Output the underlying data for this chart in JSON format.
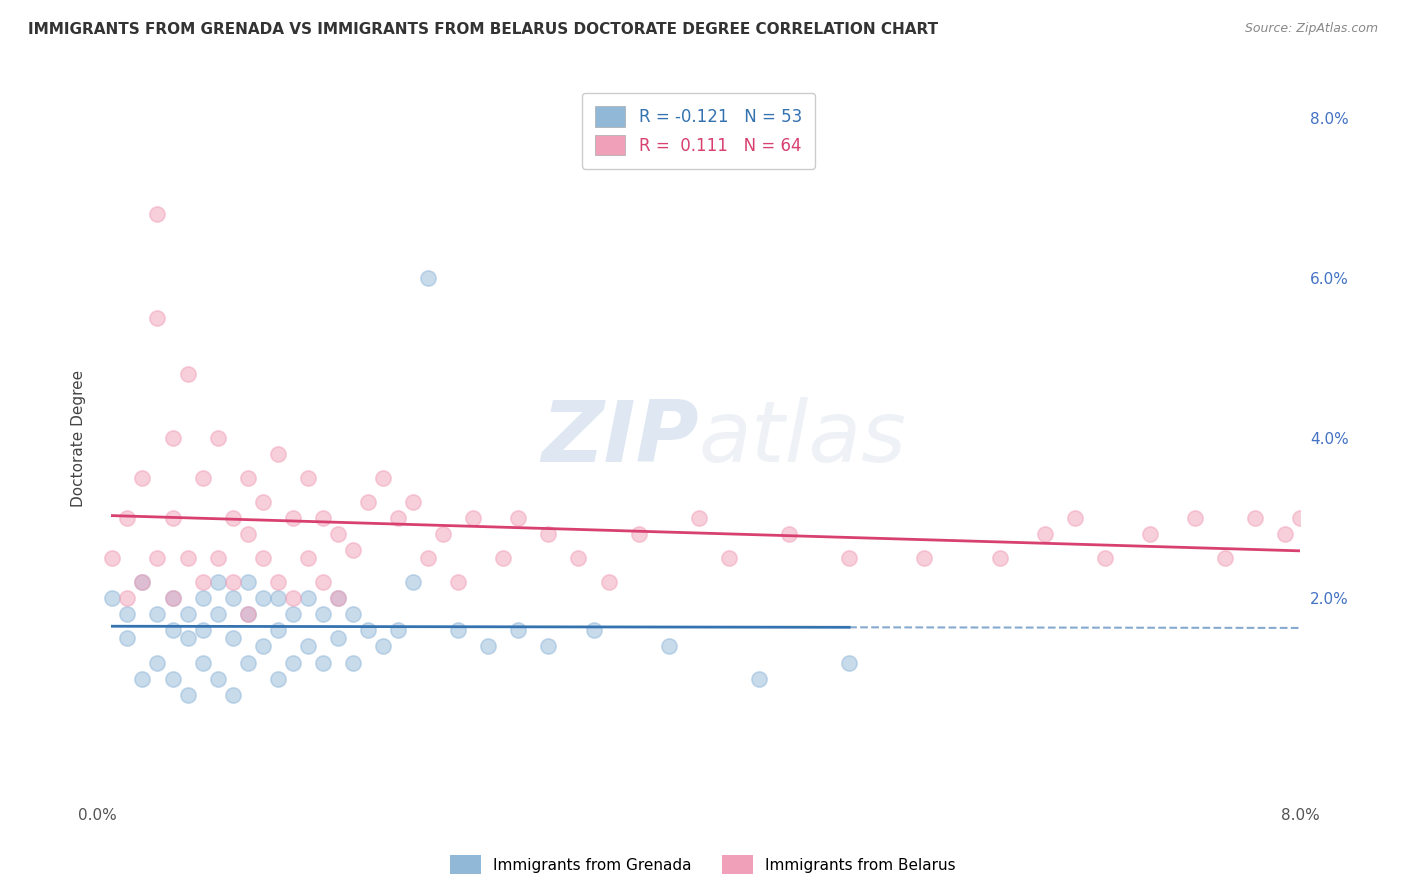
{
  "title": "IMMIGRANTS FROM GRENADA VS IMMIGRANTS FROM BELARUS DOCTORATE DEGREE CORRELATION CHART",
  "source_text": "Source: ZipAtlas.com",
  "ylabel": "Doctorate Degree",
  "xlim": [
    0.0,
    0.08
  ],
  "ylim": [
    -0.005,
    0.085
  ],
  "xticks": [
    0.0,
    0.01,
    0.02,
    0.03,
    0.04,
    0.05,
    0.06,
    0.07,
    0.08
  ],
  "yticks": [
    0.0,
    0.02,
    0.04,
    0.06,
    0.08
  ],
  "grenada_color": "#92b8d8",
  "belarus_color": "#f0a0b8",
  "grenada_R": -0.121,
  "grenada_N": 53,
  "belarus_R": 0.111,
  "belarus_N": 64,
  "grenada_line_color": "#3572b0",
  "belarus_line_color": "#d84070",
  "legend_label_1": "Immigrants from Grenada",
  "legend_label_2": "Immigrants from Belarus",
  "watermark_zip": "ZIP",
  "watermark_atlas": "atlas",
  "background_color": "#ffffff",
  "grid_color": "#d0d0d0",
  "title_color": "#333333",
  "scatter_alpha": 0.5,
  "scatter_size": 120,
  "grenada_scatter_x": [
    0.001,
    0.002,
    0.002,
    0.003,
    0.003,
    0.004,
    0.004,
    0.005,
    0.005,
    0.005,
    0.006,
    0.006,
    0.006,
    0.007,
    0.007,
    0.007,
    0.008,
    0.008,
    0.008,
    0.009,
    0.009,
    0.009,
    0.01,
    0.01,
    0.01,
    0.011,
    0.011,
    0.012,
    0.012,
    0.012,
    0.013,
    0.013,
    0.014,
    0.014,
    0.015,
    0.015,
    0.016,
    0.016,
    0.017,
    0.017,
    0.018,
    0.019,
    0.02,
    0.021,
    0.022,
    0.024,
    0.026,
    0.028,
    0.03,
    0.033,
    0.038,
    0.044,
    0.05
  ],
  "grenada_scatter_y": [
    0.02,
    0.018,
    0.015,
    0.022,
    0.01,
    0.018,
    0.012,
    0.02,
    0.016,
    0.01,
    0.018,
    0.015,
    0.008,
    0.02,
    0.016,
    0.012,
    0.022,
    0.018,
    0.01,
    0.02,
    0.015,
    0.008,
    0.022,
    0.018,
    0.012,
    0.02,
    0.014,
    0.02,
    0.016,
    0.01,
    0.018,
    0.012,
    0.02,
    0.014,
    0.018,
    0.012,
    0.02,
    0.015,
    0.018,
    0.012,
    0.016,
    0.014,
    0.016,
    0.022,
    0.06,
    0.016,
    0.014,
    0.016,
    0.014,
    0.016,
    0.014,
    0.01,
    0.012
  ],
  "belarus_scatter_x": [
    0.001,
    0.002,
    0.002,
    0.003,
    0.003,
    0.004,
    0.004,
    0.004,
    0.005,
    0.005,
    0.005,
    0.006,
    0.006,
    0.007,
    0.007,
    0.008,
    0.008,
    0.009,
    0.009,
    0.01,
    0.01,
    0.01,
    0.011,
    0.011,
    0.012,
    0.012,
    0.013,
    0.013,
    0.014,
    0.014,
    0.015,
    0.015,
    0.016,
    0.016,
    0.017,
    0.018,
    0.019,
    0.02,
    0.021,
    0.022,
    0.023,
    0.024,
    0.025,
    0.027,
    0.028,
    0.03,
    0.032,
    0.034,
    0.036,
    0.04,
    0.042,
    0.046,
    0.05,
    0.055,
    0.06,
    0.063,
    0.065,
    0.067,
    0.07,
    0.073,
    0.075,
    0.077,
    0.079,
    0.08
  ],
  "belarus_scatter_y": [
    0.025,
    0.03,
    0.02,
    0.035,
    0.022,
    0.055,
    0.068,
    0.025,
    0.04,
    0.03,
    0.02,
    0.048,
    0.025,
    0.035,
    0.022,
    0.04,
    0.025,
    0.03,
    0.022,
    0.035,
    0.028,
    0.018,
    0.032,
    0.025,
    0.038,
    0.022,
    0.03,
    0.02,
    0.035,
    0.025,
    0.03,
    0.022,
    0.028,
    0.02,
    0.026,
    0.032,
    0.035,
    0.03,
    0.032,
    0.025,
    0.028,
    0.022,
    0.03,
    0.025,
    0.03,
    0.028,
    0.025,
    0.022,
    0.028,
    0.03,
    0.025,
    0.028,
    0.025,
    0.025,
    0.025,
    0.028,
    0.03,
    0.025,
    0.028,
    0.03,
    0.025,
    0.03,
    0.028,
    0.03
  ]
}
